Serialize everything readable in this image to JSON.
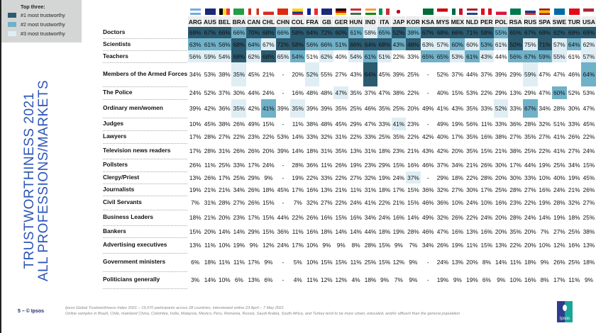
{
  "legend": {
    "title": "Top three:",
    "items": [
      "#1 most trustworthy",
      "#2 most trustworthy",
      "#3 most trustworthy"
    ],
    "colors": [
      "#2b5b70",
      "#6fb1c9",
      "#dfeef4"
    ]
  },
  "title_line1": "TRUSTWORTHINESS 2021",
  "title_line2": "ALL PROFESSIONS/MARKETS",
  "countries": [
    "ARG",
    "AUS",
    "BEL",
    "BRA",
    "CAN",
    "CHL",
    "CHN",
    "COL",
    "FRA",
    "GB",
    "GER",
    "HUN",
    "IND",
    "ITA",
    "JAP",
    "KOR",
    "KSA",
    "MYS",
    "MEX",
    "NLD",
    "PER",
    "POL",
    "RSA",
    "RUS",
    "SPA",
    "SWE",
    "TUR",
    "USA"
  ],
  "rows": [
    {
      "label": "Doctors",
      "values": [
        "69%",
        "67%",
        "66%",
        "66%",
        "70%",
        "68%",
        "66%",
        "58%",
        "64%",
        "72%",
        "60%",
        "61%",
        "58%",
        "65%",
        "52%",
        "38%",
        "67%",
        "68%",
        "66%",
        "71%",
        "58%",
        "55%",
        "65%",
        "67%",
        "68%",
        "62%",
        "69%",
        "69%"
      ],
      "rank": "1112112111123212111112111111"
    },
    {
      "label": "Scientists",
      "values": [
        "63%",
        "61%",
        "56%",
        "68%",
        "64%",
        "67%",
        "72%",
        "58%",
        "56%",
        "66%",
        "51%",
        "66%",
        "64%",
        "68%",
        "43%",
        "48%",
        "63%",
        "57%",
        "60%",
        "60%",
        "53%",
        "61%",
        "50%",
        "75%",
        "71%",
        "57%",
        "64%",
        "62%"
      ],
      "rank": "2221231122211121332323131323"
    },
    {
      "label": "Teachers",
      "values": [
        "56%",
        "59%",
        "54%",
        "68%",
        "62%",
        "68%",
        "65%",
        "54%",
        "51%",
        "62%",
        "40%",
        "54%",
        "61%",
        "51%",
        "22%",
        "33%",
        "65%",
        "65%",
        "53%",
        "61%",
        "43%",
        "44%",
        "56%",
        "67%",
        "59%",
        "55%",
        "61%",
        "57%"
      ],
      "rank": "3331313203032300223230222303"
    },
    {
      "label": "Members of the Armed Forces",
      "values": [
        "34%",
        "53%",
        "38%",
        "35%",
        "45%",
        "21%",
        "-",
        "20%",
        "52%",
        "55%",
        "27%",
        "43%",
        "64%",
        "45%",
        "39%",
        "25%",
        "-",
        "52%",
        "37%",
        "44%",
        "37%",
        "39%",
        "29%",
        "59%",
        "47%",
        "47%",
        "46%",
        "64%"
      ],
      "rank": "0003000030001000000000030002"
    },
    {
      "label": "The Police",
      "values": [
        "24%",
        "52%",
        "37%",
        "30%",
        "44%",
        "24%",
        "-",
        "16%",
        "48%",
        "48%",
        "47%",
        "35%",
        "37%",
        "47%",
        "38%",
        "22%",
        "-",
        "40%",
        "15%",
        "53%",
        "22%",
        "29%",
        "13%",
        "29%",
        "47%",
        "60%",
        "52%",
        "53%"
      ],
      "rank": "0000000000300000000000000200"
    },
    {
      "label": "Ordinary men/women",
      "values": [
        "39%",
        "42%",
        "36%",
        "35%",
        "42%",
        "41%",
        "39%",
        "35%",
        "39%",
        "39%",
        "35%",
        "25%",
        "46%",
        "35%",
        "25%",
        "20%",
        "49%",
        "41%",
        "43%",
        "35%",
        "33%",
        "52%",
        "33%",
        "67%",
        "34%",
        "28%",
        "30%",
        "47%"
      ],
      "rank": "0003020300000000000003020000"
    },
    {
      "label": "Judges",
      "values": [
        "10%",
        "45%",
        "38%",
        "26%",
        "49%",
        "15%",
        "-",
        "11%",
        "38%",
        "48%",
        "45%",
        "29%",
        "47%",
        "33%",
        "41%",
        "23%",
        "-",
        "49%",
        "19%",
        "56%",
        "11%",
        "33%",
        "36%",
        "28%",
        "32%",
        "51%",
        "33%",
        "45%"
      ],
      "rank": "0000000000000030000000000000"
    },
    {
      "label": "Lawyers",
      "values": [
        "17%",
        "28%",
        "27%",
        "22%",
        "23%",
        "22%",
        "53%",
        "14%",
        "33%",
        "32%",
        "31%",
        "22%",
        "33%",
        "25%",
        "35%",
        "22%",
        "42%",
        "40%",
        "17%",
        "35%",
        "16%",
        "38%",
        "27%",
        "35%",
        "27%",
        "41%",
        "26%",
        "22%"
      ],
      "rank": "0000000000000000000000000000"
    },
    {
      "label": "Television news readers",
      "values": [
        "17%",
        "28%",
        "31%",
        "26%",
        "26%",
        "20%",
        "39%",
        "14%",
        "18%",
        "31%",
        "35%",
        "13%",
        "31%",
        "18%",
        "23%",
        "21%",
        "43%",
        "42%",
        "20%",
        "35%",
        "15%",
        "21%",
        "38%",
        "25%",
        "22%",
        "41%",
        "27%",
        "24%"
      ],
      "rank": "0000000000000000000000000000"
    },
    {
      "label": "Pollsters",
      "values": [
        "26%",
        "11%",
        "25%",
        "33%",
        "17%",
        "24%",
        "-",
        "28%",
        "36%",
        "11%",
        "26%",
        "19%",
        "23%",
        "29%",
        "15%",
        "16%",
        "46%",
        "37%",
        "34%",
        "21%",
        "26%",
        "30%",
        "17%",
        "44%",
        "19%",
        "25%",
        "34%",
        "15%"
      ],
      "rank": "0000000000000000000000000000"
    },
    {
      "label": "Clergy/Priest",
      "values": [
        "13%",
        "26%",
        "17%",
        "25%",
        "29%",
        "9%",
        "-",
        "19%",
        "22%",
        "33%",
        "22%",
        "27%",
        "32%",
        "19%",
        "24%",
        "37%",
        "-",
        "29%",
        "18%",
        "22%",
        "28%",
        "20%",
        "30%",
        "33%",
        "10%",
        "40%",
        "19%",
        "45%"
      ],
      "rank": "0000000000000003000000000000"
    },
    {
      "label": "Journalists",
      "values": [
        "19%",
        "21%",
        "21%",
        "34%",
        "26%",
        "18%",
        "45%",
        "17%",
        "16%",
        "13%",
        "21%",
        "11%",
        "31%",
        "18%",
        "17%",
        "15%",
        "36%",
        "32%",
        "27%",
        "30%",
        "17%",
        "25%",
        "28%",
        "27%",
        "16%",
        "24%",
        "21%",
        "26%"
      ],
      "rank": "0000000000000000000000000000"
    },
    {
      "label": "Civil Servants",
      "values": [
        "7%",
        "31%",
        "28%",
        "27%",
        "26%",
        "15%",
        "-",
        "7%",
        "32%",
        "27%",
        "22%",
        "24%",
        "41%",
        "22%",
        "21%",
        "15%",
        "46%",
        "36%",
        "10%",
        "24%",
        "10%",
        "16%",
        "23%",
        "22%",
        "19%",
        "28%",
        "32%",
        "27%"
      ],
      "rank": "0000000000000000000000000000"
    },
    {
      "label": "Business Leaders",
      "values": [
        "18%",
        "21%",
        "20%",
        "23%",
        "17%",
        "15%",
        "44%",
        "22%",
        "26%",
        "16%",
        "15%",
        "16%",
        "34%",
        "24%",
        "16%",
        "14%",
        "49%",
        "32%",
        "26%",
        "22%",
        "24%",
        "20%",
        "28%",
        "24%",
        "14%",
        "19%",
        "18%",
        "25%"
      ],
      "rank": "0000000000000000000000000000"
    },
    {
      "label": "Bankers",
      "values": [
        "15%",
        "20%",
        "14%",
        "14%",
        "29%",
        "15%",
        "36%",
        "11%",
        "16%",
        "18%",
        "14%",
        "14%",
        "44%",
        "18%",
        "19%",
        "28%",
        "46%",
        "47%",
        "16%",
        "13%",
        "16%",
        "20%",
        "35%",
        "20%",
        "7%",
        "27%",
        "25%",
        "38%"
      ],
      "rank": "0000000000000000000000000000"
    },
    {
      "label": "Advertising executives",
      "values": [
        "13%",
        "11%",
        "10%",
        "19%",
        "9%",
        "12%",
        "24%",
        "17%",
        "10%",
        "9%",
        "9%",
        "8%",
        "28%",
        "15%",
        "9%",
        "7%",
        "34%",
        "26%",
        "19%",
        "11%",
        "15%",
        "13%",
        "22%",
        "20%",
        "10%",
        "12%",
        "16%",
        "13%"
      ],
      "rank": "0000000000000000000000000000"
    },
    {
      "label": "Government ministers",
      "values": [
        "6%",
        "18%",
        "11%",
        "11%",
        "17%",
        "9%",
        "-",
        "5%",
        "10%",
        "15%",
        "15%",
        "11%",
        "25%",
        "15%",
        "12%",
        "9%",
        "-",
        "24%",
        "13%",
        "20%",
        "8%",
        "14%",
        "11%",
        "18%",
        "9%",
        "26%",
        "25%",
        "18%"
      ],
      "rank": "0000000000000000000000000000"
    },
    {
      "label": "Politicians generally",
      "values": [
        "3%",
        "14%",
        "10%",
        "6%",
        "13%",
        "6%",
        "-",
        "4%",
        "11%",
        "12%",
        "12%",
        "4%",
        "18%",
        "9%",
        "7%",
        "9%",
        "-",
        "19%",
        "9%",
        "19%",
        "6%",
        "9%",
        "10%",
        "16%",
        "8%",
        "17%",
        "11%",
        "9%"
      ],
      "rank": "0000000000000000000000000000"
    }
  ],
  "footer": {
    "page": "5 – © Ipsos",
    "note1": "Ipsos Global Trustworthiness Index 2021 – 19,570 participants across 28 countries, interviewed online 23 April – 7 May 2021",
    "note2": "Online samples in Brazil, Chile, mainland China, Colombia, India, Malaysia, Mexico, Peru, Romania, Russia, Saudi Arabia, South Africa, and Turkey tend to be more urban, educated, and/or affluent than the general population",
    "logo": "Ipsos"
  }
}
